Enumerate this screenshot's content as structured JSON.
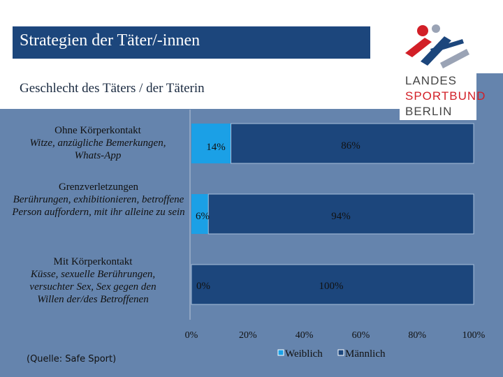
{
  "header": {
    "title": "Strategien der Täter/-innen"
  },
  "subtitle": "Geschlecht des Täters / der Täterin",
  "logo": {
    "word1": "LANDES",
    "word2": "SPORTBUND",
    "word3": "BERLIN"
  },
  "source": "(Quelle: Safe Sport)",
  "categories": [
    {
      "main": "Ohne Körperkontakt",
      "sub": "Witze, anzügliche Bemerkungen, Whats-App"
    },
    {
      "main": "Grenzverletzungen",
      "sub": "Berührungen, exhibitionieren, betroffene Person auffordern, mit ihr alleine zu sein"
    },
    {
      "main": "Mit Körperkontakt",
      "sub": "Küsse, sexuelle Berührungen, versuchter Sex, Sex  gegen den Willen der/des Betroffenen"
    }
  ],
  "colors": {
    "weiblich": "#1ba0e6",
    "maennlich": "#1c467c",
    "background": "#6584ad"
  },
  "chart_data": {
    "type": "bar",
    "orientation": "horizontal",
    "stacked": true,
    "categories": [
      "Ohne Körperkontakt",
      "Grenzverletzungen",
      "Mit Körperkontakt"
    ],
    "series": [
      {
        "name": "Weiblich",
        "values": [
          14,
          6,
          0
        ],
        "labels": [
          "14%",
          "6%",
          "0%"
        ]
      },
      {
        "name": "Männlich",
        "values": [
          86,
          94,
          100
        ],
        "labels": [
          "86%",
          "94%",
          "100%"
        ]
      }
    ],
    "xlim": [
      0,
      100
    ],
    "xticks": [
      0,
      20,
      40,
      60,
      80,
      100
    ],
    "xtick_labels": [
      "0%",
      "20%",
      "40%",
      "60%",
      "80%",
      "100%"
    ],
    "legend": [
      "Weiblich",
      "Männlich"
    ],
    "legend_position": "bottom"
  }
}
